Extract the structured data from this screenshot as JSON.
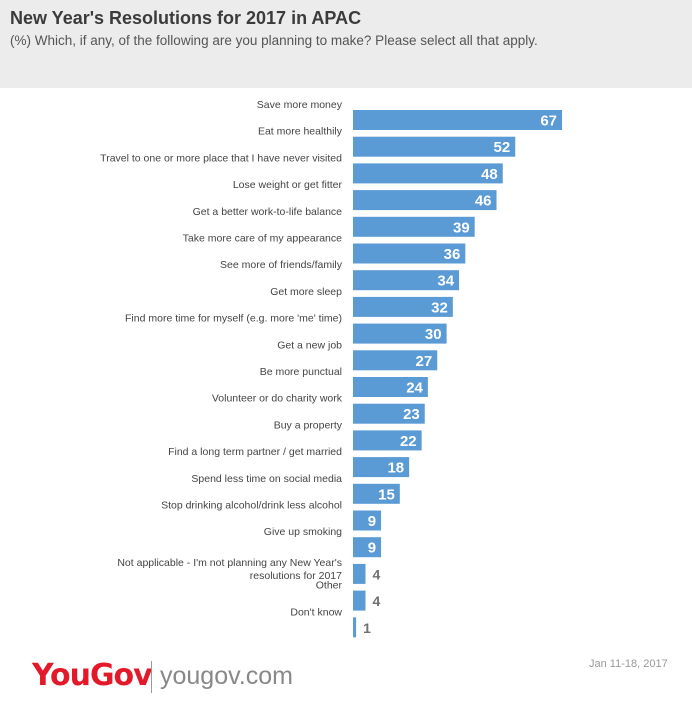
{
  "header": {
    "title": "New Year's Resolutions for 2017 in APAC",
    "subtitle": "(%) Which, if any, of the following are you planning to make? Please select all that apply."
  },
  "footer": {
    "logo_text": "YouGov",
    "url": "yougov.com",
    "date": "Jan 11-18, 2017"
  },
  "colors": {
    "bar": "#5b9bd5",
    "inside_label": "#ffffff",
    "outside_label": "#707070",
    "category_label": "#444444",
    "brand_red": "#e3192a"
  },
  "chart_data": {
    "type": "bar",
    "orientation": "horizontal",
    "categories": [
      "Save more money",
      "Eat more healthily",
      "Travel to one or more place that I have never visited",
      "Lose weight or get fitter",
      "Get a better work-to-life balance",
      "Take more care of my appearance",
      "See more of friends/family",
      "Get more sleep",
      "Find more time for myself (e.g. more 'me' time)",
      "Get a new job",
      "Be more punctual",
      "Volunteer or do charity work",
      "Buy a property",
      "Find a long term partner / get married",
      "Spend less time on social media",
      "Stop drinking alcohol/drink less alcohol",
      "Give up smoking",
      "Not applicable - I'm not planning any New Year's resolutions for 2017",
      "Other",
      "Don't know"
    ],
    "values": [
      67,
      52,
      48,
      46,
      39,
      36,
      34,
      32,
      30,
      27,
      24,
      23,
      22,
      18,
      15,
      9,
      9,
      4,
      4,
      1
    ],
    "title": "New Year's Resolutions for 2017 in APAC",
    "xlabel": "",
    "ylabel": "",
    "xlim": [
      0,
      70
    ],
    "grid": false,
    "data_labels": true
  }
}
